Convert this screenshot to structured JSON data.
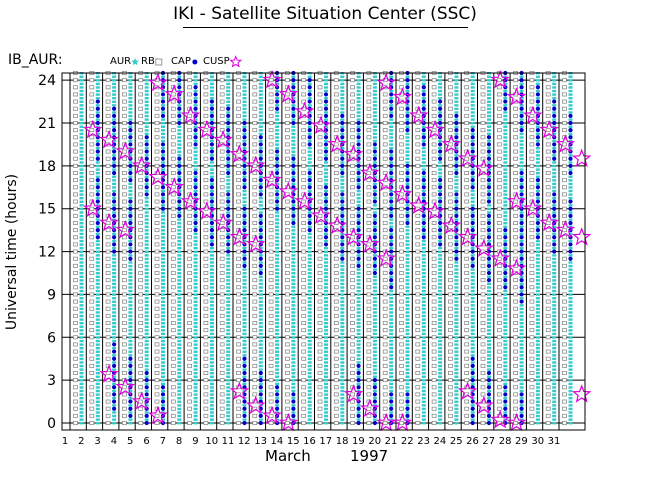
{
  "title": "IKI - Satellite Situation Center (SSC)",
  "chart_data": {
    "type": "scatter",
    "panel_label": "IB_AUR:",
    "legend": [
      {
        "name": "AUR",
        "marker": "star",
        "color": "#33cccc"
      },
      {
        "name": "RB",
        "marker": "square",
        "color": "#808080"
      },
      {
        "name": "CAP",
        "marker": "square",
        "color": "#808080"
      },
      {
        "name": "CUSP",
        "marker": "dot",
        "color": "#0000cc"
      }
    ],
    "ylabel": "Universal time (hours)",
    "xlabel_month": "March",
    "xlabel_year": "1997",
    "ylim": [
      0,
      24.5
    ],
    "xlim": [
      1,
      32
    ],
    "yticks": [
      0,
      3,
      6,
      9,
      12,
      15,
      18,
      21,
      24
    ],
    "xticks": [
      1,
      2,
      3,
      4,
      5,
      6,
      7,
      8,
      9,
      10,
      11,
      12,
      13,
      14,
      15,
      16,
      17,
      18,
      19,
      20,
      21,
      22,
      23,
      24,
      25,
      26,
      27,
      28,
      29,
      30,
      31
    ],
    "grid": "horizontal",
    "event_color": "#dd00dd",
    "events": [
      {
        "day": 1.9,
        "t": 20.5
      },
      {
        "day": 1.9,
        "t": 15.0
      },
      {
        "day": 2.9,
        "t": 19.8
      },
      {
        "day": 2.9,
        "t": 14.0
      },
      {
        "day": 2.9,
        "t": 3.4
      },
      {
        "day": 3.9,
        "t": 19.0
      },
      {
        "day": 3.9,
        "t": 13.5
      },
      {
        "day": 3.9,
        "t": 2.5
      },
      {
        "day": 4.9,
        "t": 18.0
      },
      {
        "day": 4.9,
        "t": 1.5
      },
      {
        "day": 5.9,
        "t": 23.8
      },
      {
        "day": 5.9,
        "t": 17.2
      },
      {
        "day": 5.9,
        "t": 0.5
      },
      {
        "day": 6.9,
        "t": 23.0
      },
      {
        "day": 6.9,
        "t": 16.5
      },
      {
        "day": 7.9,
        "t": 21.5
      },
      {
        "day": 7.9,
        "t": 15.5
      },
      {
        "day": 8.9,
        "t": 20.5
      },
      {
        "day": 8.9,
        "t": 14.8
      },
      {
        "day": 9.9,
        "t": 19.8
      },
      {
        "day": 9.9,
        "t": 14.0
      },
      {
        "day": 10.9,
        "t": 18.8
      },
      {
        "day": 10.9,
        "t": 13.0
      },
      {
        "day": 10.9,
        "t": 2.2
      },
      {
        "day": 11.9,
        "t": 18.0
      },
      {
        "day": 11.9,
        "t": 12.5
      },
      {
        "day": 11.9,
        "t": 1.2
      },
      {
        "day": 12.9,
        "t": 24.0
      },
      {
        "day": 12.9,
        "t": 17.0
      },
      {
        "day": 12.9,
        "t": 0.5
      },
      {
        "day": 13.9,
        "t": 23.0
      },
      {
        "day": 13.9,
        "t": 16.2
      },
      {
        "day": 13.9,
        "t": 0.0
      },
      {
        "day": 14.9,
        "t": 21.8
      },
      {
        "day": 14.9,
        "t": 15.5
      },
      {
        "day": 15.9,
        "t": 20.8
      },
      {
        "day": 15.9,
        "t": 14.5
      },
      {
        "day": 16.9,
        "t": 19.5
      },
      {
        "day": 16.9,
        "t": 13.8
      },
      {
        "day": 17.9,
        "t": 18.8
      },
      {
        "day": 17.9,
        "t": 13.0
      },
      {
        "day": 17.9,
        "t": 2.0
      },
      {
        "day": 18.9,
        "t": 17.5
      },
      {
        "day": 18.9,
        "t": 12.5
      },
      {
        "day": 18.9,
        "t": 1.0
      },
      {
        "day": 19.9,
        "t": 23.8
      },
      {
        "day": 19.9,
        "t": 16.8
      },
      {
        "day": 19.9,
        "t": 11.5
      },
      {
        "day": 19.9,
        "t": 0.0
      },
      {
        "day": 20.9,
        "t": 22.8
      },
      {
        "day": 20.9,
        "t": 16.0
      },
      {
        "day": 20.9,
        "t": 0.0
      },
      {
        "day": 21.9,
        "t": 21.5
      },
      {
        "day": 21.9,
        "t": 15.2
      },
      {
        "day": 22.9,
        "t": 20.5
      },
      {
        "day": 22.9,
        "t": 14.8
      },
      {
        "day": 23.9,
        "t": 19.5
      },
      {
        "day": 23.9,
        "t": 13.8
      },
      {
        "day": 24.9,
        "t": 18.5
      },
      {
        "day": 24.9,
        "t": 13.0
      },
      {
        "day": 24.9,
        "t": 2.2
      },
      {
        "day": 25.9,
        "t": 17.8
      },
      {
        "day": 25.9,
        "t": 12.2
      },
      {
        "day": 25.9,
        "t": 1.2
      },
      {
        "day": 26.9,
        "t": 24.0
      },
      {
        "day": 26.9,
        "t": 11.5
      },
      {
        "day": 26.9,
        "t": 0.2
      },
      {
        "day": 27.9,
        "t": 22.8
      },
      {
        "day": 27.9,
        "t": 15.5
      },
      {
        "day": 27.9,
        "t": 10.8
      },
      {
        "day": 27.9,
        "t": 0.0
      },
      {
        "day": 28.9,
        "t": 21.5
      },
      {
        "day": 28.9,
        "t": 15.0
      },
      {
        "day": 29.9,
        "t": 20.5
      },
      {
        "day": 29.9,
        "t": 14.0
      },
      {
        "day": 30.9,
        "t": 19.5
      },
      {
        "day": 30.9,
        "t": 13.5
      },
      {
        "day": 31.9,
        "t": 18.5
      },
      {
        "day": 31.9,
        "t": 13.0
      },
      {
        "day": 31.9,
        "t": 2.0
      }
    ]
  }
}
